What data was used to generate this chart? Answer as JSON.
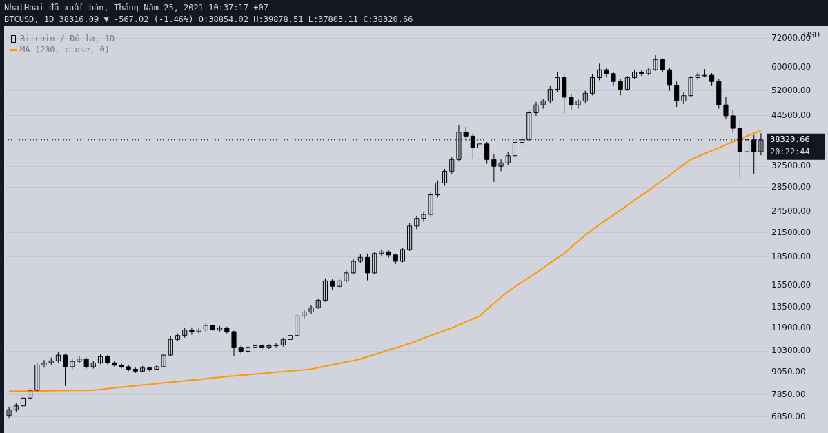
{
  "chart_data": {
    "type": "candlestick",
    "title": "NhatHoai đã xuất bản, Tháng Năm 25, 2021 10:37:17 +07",
    "subtitle": "BTCUSD, 1D 38316.09 ▼ -567.02 (-1.46%) O:38854.02 H:39878.51 L:37803.11 C:38320.66",
    "ylabel": "USD",
    "categories": [
      null,
      null,
      null,
      null,
      null,
      null,
      null,
      null,
      null,
      null,
      null,
      null,
      null,
      null,
      null,
      null,
      null,
      null,
      null,
      null,
      null,
      null,
      null,
      null,
      null,
      null,
      null,
      null,
      null,
      null,
      null,
      null,
      null,
      null,
      null,
      null,
      null,
      null,
      null,
      null,
      null,
      null,
      null,
      null,
      null,
      null,
      null,
      null,
      null,
      null,
      null,
      null,
      null,
      null,
      null,
      null,
      null,
      null,
      null,
      null,
      null,
      null,
      null,
      null,
      null,
      null,
      null,
      null,
      null,
      null,
      null,
      null,
      null,
      null,
      null,
      null,
      null,
      null,
      null,
      null,
      null,
      null,
      null,
      null,
      null,
      null,
      null,
      null,
      null,
      null,
      null,
      null,
      null,
      null,
      null,
      null,
      null,
      null,
      null,
      null,
      null,
      null,
      null,
      null,
      null,
      null,
      null,
      null
    ],
    "series": [
      {
        "name": "Bitcoin / Đô la, 1D",
        "color": "#000000",
        "ohlc": [
          [
            6900,
            7300,
            6800,
            7160
          ],
          [
            7160,
            7450,
            7050,
            7330
          ],
          [
            7330,
            7800,
            7250,
            7700
          ],
          [
            7700,
            8200,
            7600,
            8080
          ],
          [
            8080,
            9600,
            8000,
            9450
          ],
          [
            9450,
            9750,
            9300,
            9580
          ],
          [
            9580,
            9900,
            9450,
            9700
          ],
          [
            9700,
            10250,
            9600,
            10050
          ],
          [
            10050,
            10150,
            8300,
            9350
          ],
          [
            9350,
            9800,
            9200,
            9670
          ],
          [
            9670,
            10000,
            9550,
            9810
          ],
          [
            9810,
            9900,
            9250,
            9350
          ],
          [
            9350,
            9700,
            9250,
            9580
          ],
          [
            9580,
            10100,
            9500,
            9960
          ],
          [
            9960,
            10050,
            9500,
            9580
          ],
          [
            9580,
            9700,
            9350,
            9440
          ],
          [
            9440,
            9550,
            9250,
            9350
          ],
          [
            9350,
            9450,
            9100,
            9210
          ],
          [
            9210,
            9300,
            9000,
            9100
          ],
          [
            9100,
            9400,
            9050,
            9280
          ],
          [
            9280,
            9350,
            9100,
            9210
          ],
          [
            9210,
            9450,
            9150,
            9350
          ],
          [
            9350,
            10150,
            9300,
            10050
          ],
          [
            10050,
            11300,
            10000,
            11080
          ],
          [
            11080,
            11500,
            10950,
            11350
          ],
          [
            11350,
            11900,
            11200,
            11750
          ],
          [
            11750,
            11950,
            11400,
            11630
          ],
          [
            11630,
            11900,
            11500,
            11750
          ],
          [
            11750,
            12300,
            11650,
            12090
          ],
          [
            12090,
            12150,
            11600,
            11750
          ],
          [
            11750,
            12050,
            11650,
            11900
          ],
          [
            11900,
            12000,
            11500,
            11630
          ],
          [
            11630,
            11700,
            10000,
            10550
          ],
          [
            10550,
            10700,
            10150,
            10300
          ],
          [
            10300,
            10700,
            10200,
            10550
          ],
          [
            10550,
            10800,
            10450,
            10650
          ],
          [
            10650,
            10750,
            10400,
            10550
          ],
          [
            10550,
            10750,
            10450,
            10650
          ],
          [
            10650,
            10850,
            10550,
            10700
          ],
          [
            10700,
            11200,
            10600,
            11080
          ],
          [
            11080,
            11500,
            10950,
            11350
          ],
          [
            11350,
            13000,
            11300,
            12820
          ],
          [
            12820,
            13300,
            12600,
            13140
          ],
          [
            13140,
            13700,
            13000,
            13500
          ],
          [
            13500,
            14300,
            13400,
            14140
          ],
          [
            14140,
            16200,
            14000,
            15950
          ],
          [
            15950,
            16100,
            15100,
            15420
          ],
          [
            15420,
            16100,
            15300,
            15950
          ],
          [
            15950,
            17000,
            15800,
            16750
          ],
          [
            16750,
            18300,
            16600,
            18010
          ],
          [
            18010,
            18800,
            17800,
            18450
          ],
          [
            18450,
            18900,
            16000,
            16750
          ],
          [
            16750,
            19100,
            16600,
            18900
          ],
          [
            18900,
            19400,
            18600,
            19100
          ],
          [
            19100,
            19300,
            18400,
            18730
          ],
          [
            18730,
            18900,
            17700,
            18010
          ],
          [
            18010,
            19600,
            17900,
            19380
          ],
          [
            19380,
            22800,
            19200,
            22420
          ],
          [
            22420,
            23900,
            22000,
            23520
          ],
          [
            23520,
            24500,
            23000,
            24100
          ],
          [
            24100,
            27700,
            23800,
            27220
          ],
          [
            27220,
            29800,
            26800,
            29300
          ],
          [
            29300,
            32000,
            28800,
            31520
          ],
          [
            31520,
            34500,
            31000,
            33910
          ],
          [
            33910,
            42000,
            33500,
            40180
          ],
          [
            40180,
            41500,
            38000,
            39230
          ],
          [
            39230,
            40000,
            34000,
            36440
          ],
          [
            36440,
            38000,
            35500,
            37330
          ],
          [
            37330,
            37800,
            33000,
            33910
          ],
          [
            33910,
            35000,
            29500,
            32500
          ],
          [
            32500,
            34000,
            31500,
            33200
          ],
          [
            33200,
            35500,
            32800,
            34730
          ],
          [
            34730,
            38300,
            34300,
            37690
          ],
          [
            37690,
            39000,
            36800,
            38320
          ],
          [
            38320,
            46000,
            38000,
            45340
          ],
          [
            45340,
            48500,
            44500,
            47590
          ],
          [
            47590,
            49500,
            46500,
            48750
          ],
          [
            48750,
            53500,
            48000,
            52460
          ],
          [
            52460,
            58300,
            51500,
            56410
          ],
          [
            56410,
            57500,
            45000,
            49940
          ],
          [
            49940,
            51000,
            46000,
            47590
          ],
          [
            47590,
            49500,
            46500,
            48750
          ],
          [
            48750,
            52000,
            48000,
            51160
          ],
          [
            51160,
            57500,
            50500,
            56410
          ],
          [
            56410,
            61500,
            55500,
            59230
          ],
          [
            59230,
            60000,
            56500,
            57800
          ],
          [
            57800,
            58500,
            53500,
            55050
          ],
          [
            55050,
            56000,
            50500,
            52460
          ],
          [
            52460,
            57000,
            52000,
            56410
          ],
          [
            56410,
            59000,
            55800,
            58370
          ],
          [
            58370,
            59000,
            57000,
            57800
          ],
          [
            57800,
            60000,
            57200,
            59230
          ],
          [
            59230,
            64800,
            58800,
            63160
          ],
          [
            63160,
            63600,
            58500,
            59230
          ],
          [
            59230,
            60000,
            52000,
            53740
          ],
          [
            53740,
            55000,
            47000,
            48750
          ],
          [
            48750,
            51500,
            47800,
            50430
          ],
          [
            50430,
            57000,
            50000,
            56410
          ],
          [
            56410,
            58500,
            55500,
            57250
          ],
          [
            57250,
            59500,
            56500,
            57250
          ],
          [
            57250,
            58000,
            53500,
            55050
          ],
          [
            55050,
            56000,
            46500,
            47590
          ],
          [
            47590,
            50000,
            43500,
            44500
          ],
          [
            44500,
            46000,
            40000,
            41160
          ],
          [
            41160,
            43000,
            30000,
            35580
          ],
          [
            35580,
            40500,
            34500,
            38320
          ],
          [
            38320,
            39500,
            31000,
            35580
          ],
          [
            35580,
            39900,
            34800,
            38320
          ]
        ]
      },
      {
        "type": "line",
        "name": "MA (200, close, 0)",
        "color": "#ff9800",
        "values": [
          8040,
          8040,
          8040,
          8040,
          8045,
          8050,
          8055,
          8060,
          8065,
          8070,
          8070,
          8075,
          8080,
          8120,
          8160,
          8200,
          8240,
          8270,
          8310,
          8350,
          8380,
          8420,
          8460,
          8490,
          8530,
          8570,
          8610,
          8640,
          8680,
          8720,
          8760,
          8800,
          8830,
          8870,
          8900,
          8940,
          8970,
          9000,
          9040,
          9070,
          9110,
          9140,
          9180,
          9210,
          9300,
          9380,
          9470,
          9550,
          9640,
          9720,
          9810,
          9950,
          10090,
          10230,
          10380,
          10520,
          10660,
          10800,
          10980,
          11170,
          11350,
          11530,
          11720,
          11900,
          12130,
          12360,
          12590,
          12820,
          13350,
          13880,
          14400,
          14930,
          15380,
          15840,
          16290,
          16750,
          17290,
          17830,
          18370,
          18910,
          19660,
          20410,
          21170,
          21920,
          22630,
          23330,
          24040,
          24740,
          25540,
          26350,
          27150,
          27950,
          28880,
          29820,
          30750,
          31800,
          32860,
          33910,
          34540,
          35180,
          35810,
          36440,
          37140,
          37840,
          38530,
          39230,
          39910,
          40580
        ]
      }
    ],
    "log": true,
    "ylim": [
      6500,
      74000
    ],
    "yticks": [
      {
        "value": 6850,
        "label": "6850.00"
      },
      {
        "value": 7850,
        "label": "7850.00"
      },
      {
        "value": 9050,
        "label": "9050.00"
      },
      {
        "value": 10300,
        "label": "10300.00"
      },
      {
        "value": 11900,
        "label": "11900.00"
      },
      {
        "value": 13500,
        "label": "13500.00"
      },
      {
        "value": 15500,
        "label": "15500.00"
      },
      {
        "value": 18500,
        "label": "18500.00"
      },
      {
        "value": 21500,
        "label": "21500.00"
      },
      {
        "value": 24500,
        "label": "24500.00"
      },
      {
        "value": 28500,
        "label": "28500.00"
      },
      {
        "value": 32500,
        "label": "32500.00"
      },
      {
        "value": 44500,
        "label": "44500.00"
      },
      {
        "value": 52000,
        "label": "52000.00"
      },
      {
        "value": 60000,
        "label": "60000.00"
      },
      {
        "value": 72000,
        "label": "72000.00"
      }
    ],
    "grid": "y",
    "legend": "top left",
    "tick_labels": "y",
    "ref_lines": [
      {
        "axis": "y",
        "value": 38320.66,
        "label": "38320.66",
        "color": "#000000",
        "line_style": "dotted"
      }
    ],
    "annotations": [
      "20:22:44"
    ]
  }
}
